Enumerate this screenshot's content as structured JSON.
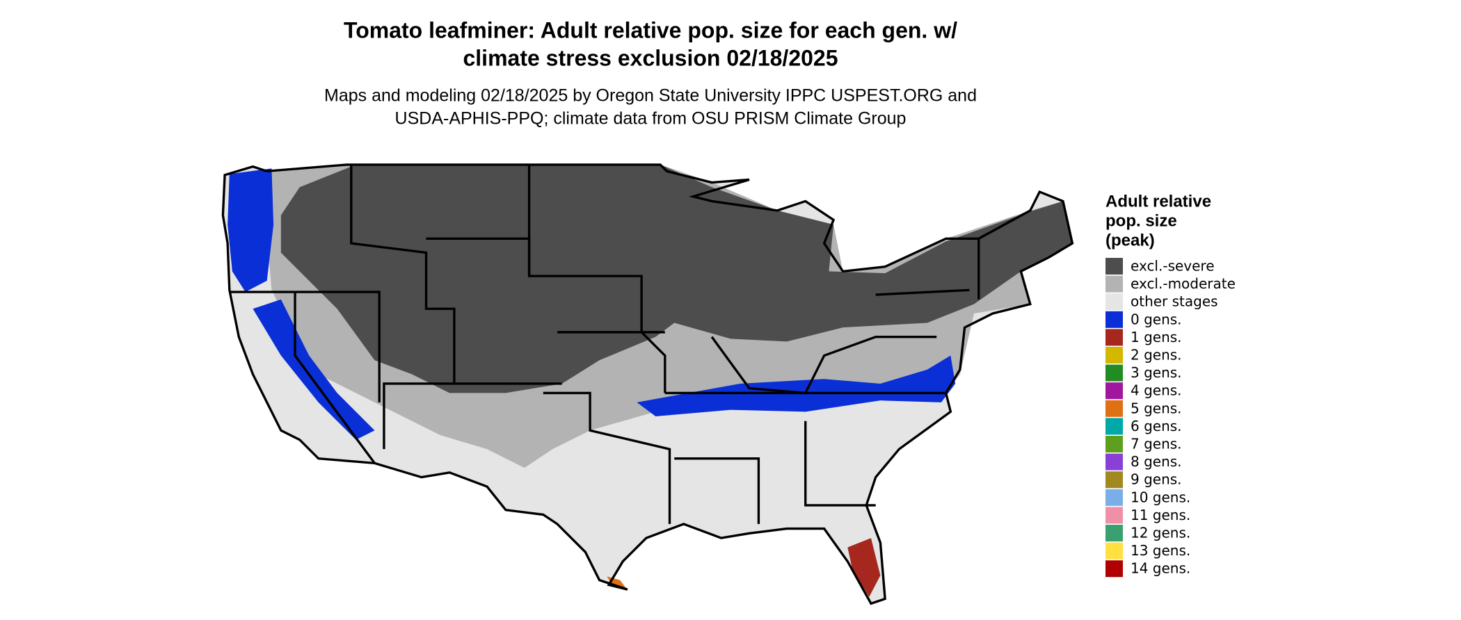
{
  "title": [
    "Tomato leafminer: Adult relative pop. size for each gen. w/",
    "climate stress exclusion 02/18/2025"
  ],
  "subtitle": [
    "Maps and modeling 02/18/2025 by Oregon State University IPPC USPEST.ORG and",
    "USDA-APHIS-PPQ; climate data from OSU PRISM Climate Group"
  ],
  "legend": {
    "title": [
      "Adult relative",
      "pop. size",
      "(peak)"
    ],
    "items": [
      {
        "label": "excl.-severe",
        "color": "#4d4d4d"
      },
      {
        "label": "excl.-moderate",
        "color": "#b3b3b3"
      },
      {
        "label": "other stages",
        "color": "#e5e5e5"
      },
      {
        "label": "0 gens.",
        "color": "#0a2fd6"
      },
      {
        "label": "1 gens.",
        "color": "#a6271d"
      },
      {
        "label": "2 gens.",
        "color": "#d4b800"
      },
      {
        "label": "3 gens.",
        "color": "#228b22"
      },
      {
        "label": "4 gens.",
        "color": "#a0169e"
      },
      {
        "label": "5 gens.",
        "color": "#e07014"
      },
      {
        "label": "6 gens.",
        "color": "#00a8a8"
      },
      {
        "label": "7 gens.",
        "color": "#5ea01e"
      },
      {
        "label": "8 gens.",
        "color": "#8a3fd6"
      },
      {
        "label": "9 gens.",
        "color": "#a08a20"
      },
      {
        "label": "10 gens.",
        "color": "#7aaee8"
      },
      {
        "label": "11 gens.",
        "color": "#f090a8"
      },
      {
        "label": "12 gens.",
        "color": "#3aa070"
      },
      {
        "label": "13 gens.",
        "color": "#ffe040"
      },
      {
        "label": "14 gens.",
        "color": "#b00000"
      }
    ]
  }
}
